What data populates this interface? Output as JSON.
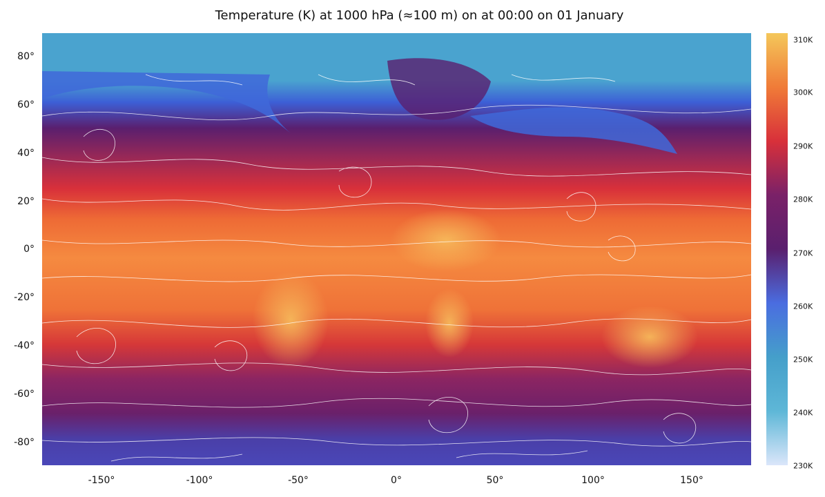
{
  "title": "Temperature (K) at 1000 hPa (≈100 m) on at 00:00 on 01 January",
  "axes": {
    "y_ticks": [
      "80°",
      "60°",
      "40°",
      "20°",
      "0°",
      "-20°",
      "-40°",
      "-60°",
      "-80°"
    ],
    "x_ticks": [
      "-150°",
      "-100°",
      "-50°",
      "0°",
      "50°",
      "100°",
      "150°"
    ]
  },
  "colorbar": {
    "labels": [
      "310K",
      "300K",
      "290K",
      "280K",
      "270K",
      "260K",
      "250K",
      "240K",
      "230K"
    ],
    "colors": [
      "#f4c75a",
      "#f07b38",
      "#d8303a",
      "#7a2168",
      "#5a1f6e",
      "#4a6de0",
      "#459fca",
      "#5eb7d7",
      "#dbe6fa"
    ]
  },
  "map": {
    "lon_range": [
      -180,
      180
    ],
    "lat_range": [
      -90,
      90
    ],
    "variable": "temperature",
    "overlay": "wind streamlines"
  }
}
